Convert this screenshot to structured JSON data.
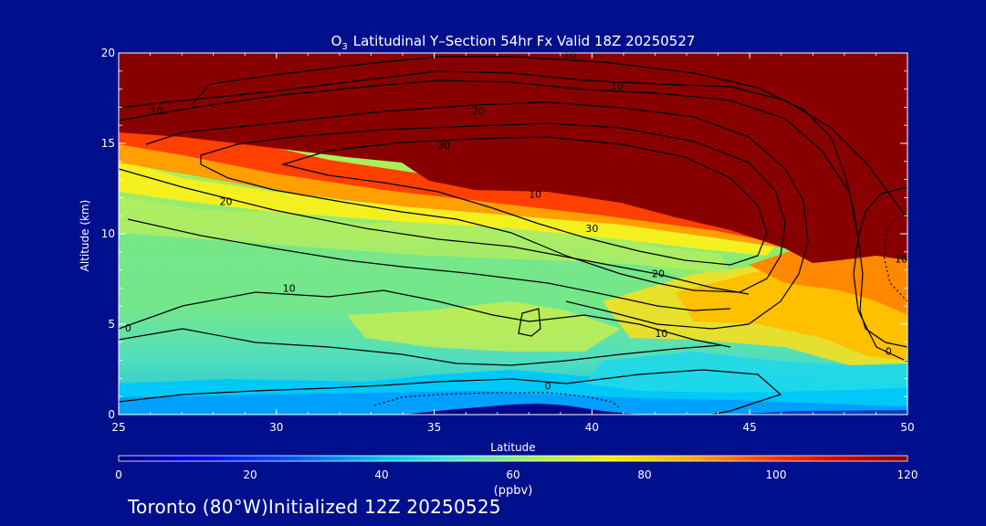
{
  "chart_data": {
    "type": "heatmap",
    "title": "Latitudinal Y–Section 54hr  Fx Valid 18Z 20250527",
    "title_species": "O",
    "title_subscript": "3",
    "xlabel": "Latitude",
    "ylabel": "Altitude (km)",
    "xlim": [
      25,
      50
    ],
    "ylim": [
      0,
      20
    ],
    "x_ticks": [
      25,
      30,
      35,
      40,
      45,
      50
    ],
    "y_ticks": [
      0,
      5,
      10,
      15,
      20
    ],
    "colorbar": {
      "range": [
        0,
        120
      ],
      "ticks": [
        0,
        20,
        40,
        60,
        80,
        100,
        120
      ],
      "unit": "(ppbv)"
    },
    "contour_labels": [
      {
        "text": "10",
        "lat": 26.2,
        "alt": 16.8
      },
      {
        "text": "10",
        "lat": 39.3,
        "alt": 19.9
      },
      {
        "text": "10",
        "lat": 40.8,
        "alt": 18.2
      },
      {
        "text": "20",
        "lat": 36.4,
        "alt": 16.8
      },
      {
        "text": "30",
        "lat": 35.3,
        "alt": 14.9
      },
      {
        "text": "20",
        "lat": 28.4,
        "alt": 11.8
      },
      {
        "text": "10",
        "lat": 38.2,
        "alt": 12.2
      },
      {
        "text": "30",
        "lat": 40.0,
        "alt": 10.3
      },
      {
        "text": "20",
        "lat": 42.1,
        "alt": 7.8
      },
      {
        "text": "10",
        "lat": 30.4,
        "alt": 7.0
      },
      {
        "text": "10",
        "lat": 42.2,
        "alt": 4.5
      },
      {
        "text": "0",
        "lat": 25.3,
        "alt": 4.8
      },
      {
        "text": "0",
        "lat": 38.6,
        "alt": 1.6
      },
      {
        "text": "0",
        "lat": 49.4,
        "alt": 3.5
      },
      {
        "text": "10",
        "lat": 49.8,
        "alt": 8.6
      }
    ],
    "footer": "Toronto (80°W)Initialized 12Z 20250525"
  }
}
